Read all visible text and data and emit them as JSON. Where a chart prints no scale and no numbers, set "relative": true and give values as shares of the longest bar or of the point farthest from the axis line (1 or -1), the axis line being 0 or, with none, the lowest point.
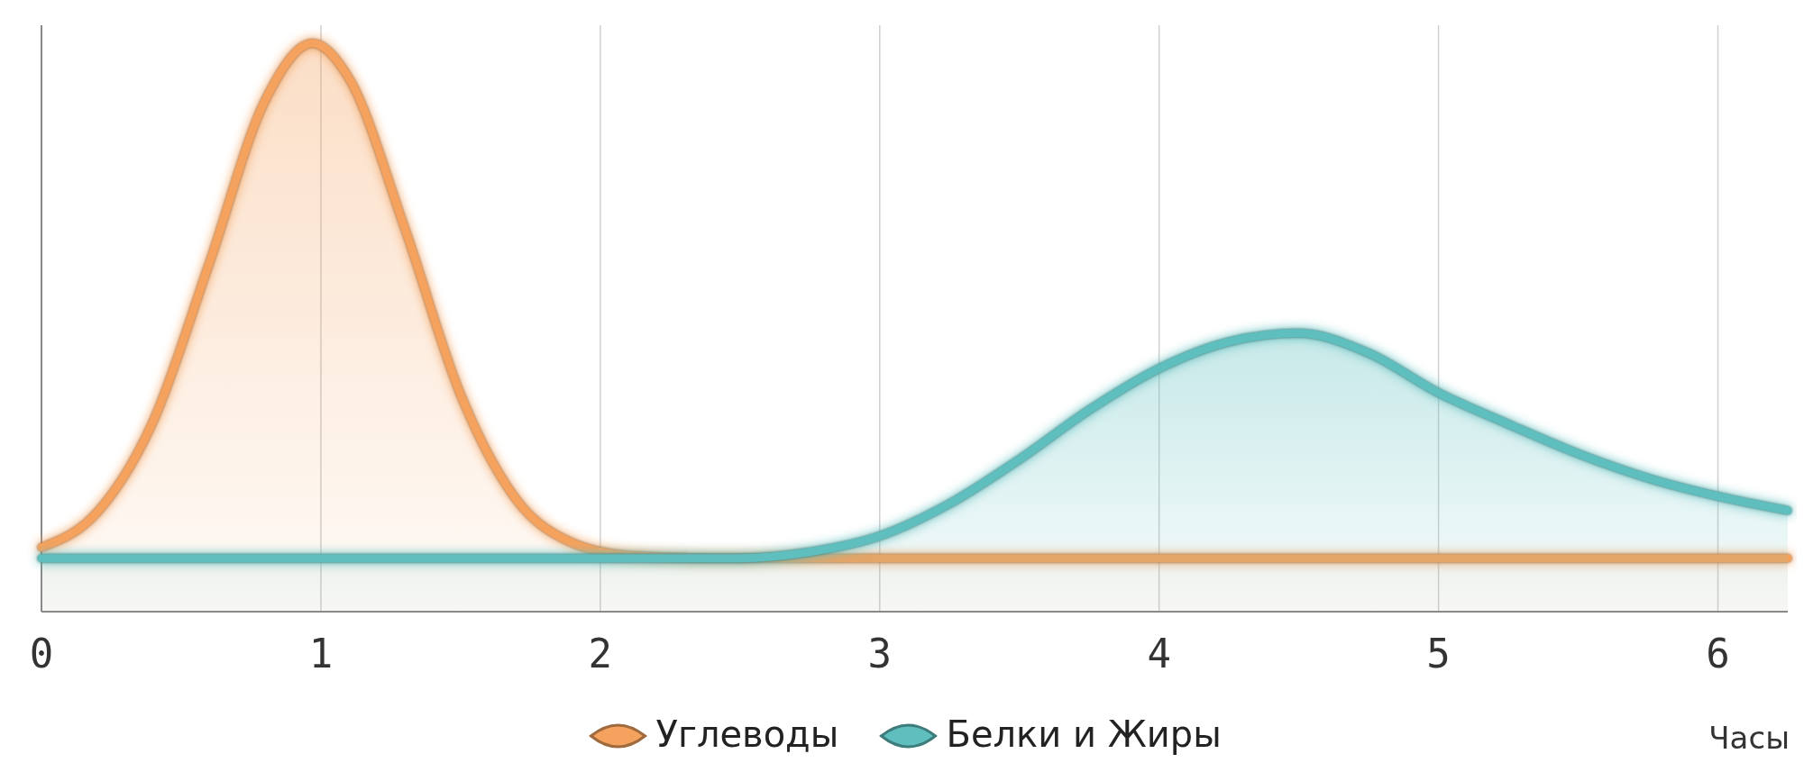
{
  "chart_data": {
    "type": "area",
    "relative": true,
    "xlabel": "Часы",
    "xlim": [
      0,
      6.25
    ],
    "xticks": [
      0,
      1,
      2,
      3,
      4,
      5,
      6
    ],
    "grid": "x",
    "legend": "bottom",
    "series": [
      {
        "name": "Углеводы",
        "color": "#f4a25e",
        "x": [
          0,
          0.2,
          0.4,
          0.6,
          0.8,
          0.97,
          1.1,
          1.3,
          1.5,
          1.7,
          1.9,
          2.1,
          2.4,
          3,
          4,
          5,
          6,
          6.25
        ],
        "values": [
          0.113,
          0.175,
          0.335,
          0.612,
          0.899,
          1.0,
          0.939,
          0.675,
          0.382,
          0.197,
          0.121,
          0.099,
          0.094,
          0.094,
          0.094,
          0.094,
          0.094,
          0.094
        ]
      },
      {
        "name": "Белки и Жиры",
        "color": "#5fbfbf",
        "x": [
          0,
          1,
          2,
          2.5,
          2.75,
          3,
          3.25,
          3.5,
          3.75,
          4,
          4.25,
          4.5,
          4.75,
          5,
          5.25,
          5.5,
          5.75,
          6,
          6.25
        ],
        "values": [
          0.094,
          0.094,
          0.094,
          0.094,
          0.105,
          0.133,
          0.19,
          0.268,
          0.355,
          0.428,
          0.475,
          0.49,
          0.455,
          0.385,
          0.33,
          0.278,
          0.235,
          0.203,
          0.178
        ]
      }
    ]
  }
}
